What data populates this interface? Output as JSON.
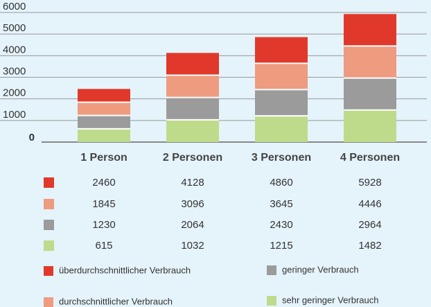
{
  "chart_data": {
    "type": "bar",
    "overlap": true,
    "categories": [
      "1 Person",
      "2 Personen",
      "3 Personen",
      "4 Personen"
    ],
    "series": [
      {
        "name": "überdurchschnittlicher Verbrauch",
        "color": "#e0392b",
        "values": [
          2460,
          4128,
          4860,
          5928
        ]
      },
      {
        "name": "durchschnittlicher Verbrauch",
        "color": "#ee9b80",
        "values": [
          1845,
          3096,
          3645,
          4446
        ]
      },
      {
        "name": "geringer Verbrauch",
        "color": "#9b9b9b",
        "values": [
          1230,
          2064,
          2430,
          2964
        ]
      },
      {
        "name": "sehr geringer Verbrauch",
        "color": "#bedb8b",
        "values": [
          615,
          1032,
          1215,
          1482
        ]
      }
    ],
    "ylim": [
      0,
      6000
    ],
    "yticks": [
      0,
      1000,
      2000,
      3000,
      4000,
      5000,
      6000
    ],
    "grid": true
  }
}
